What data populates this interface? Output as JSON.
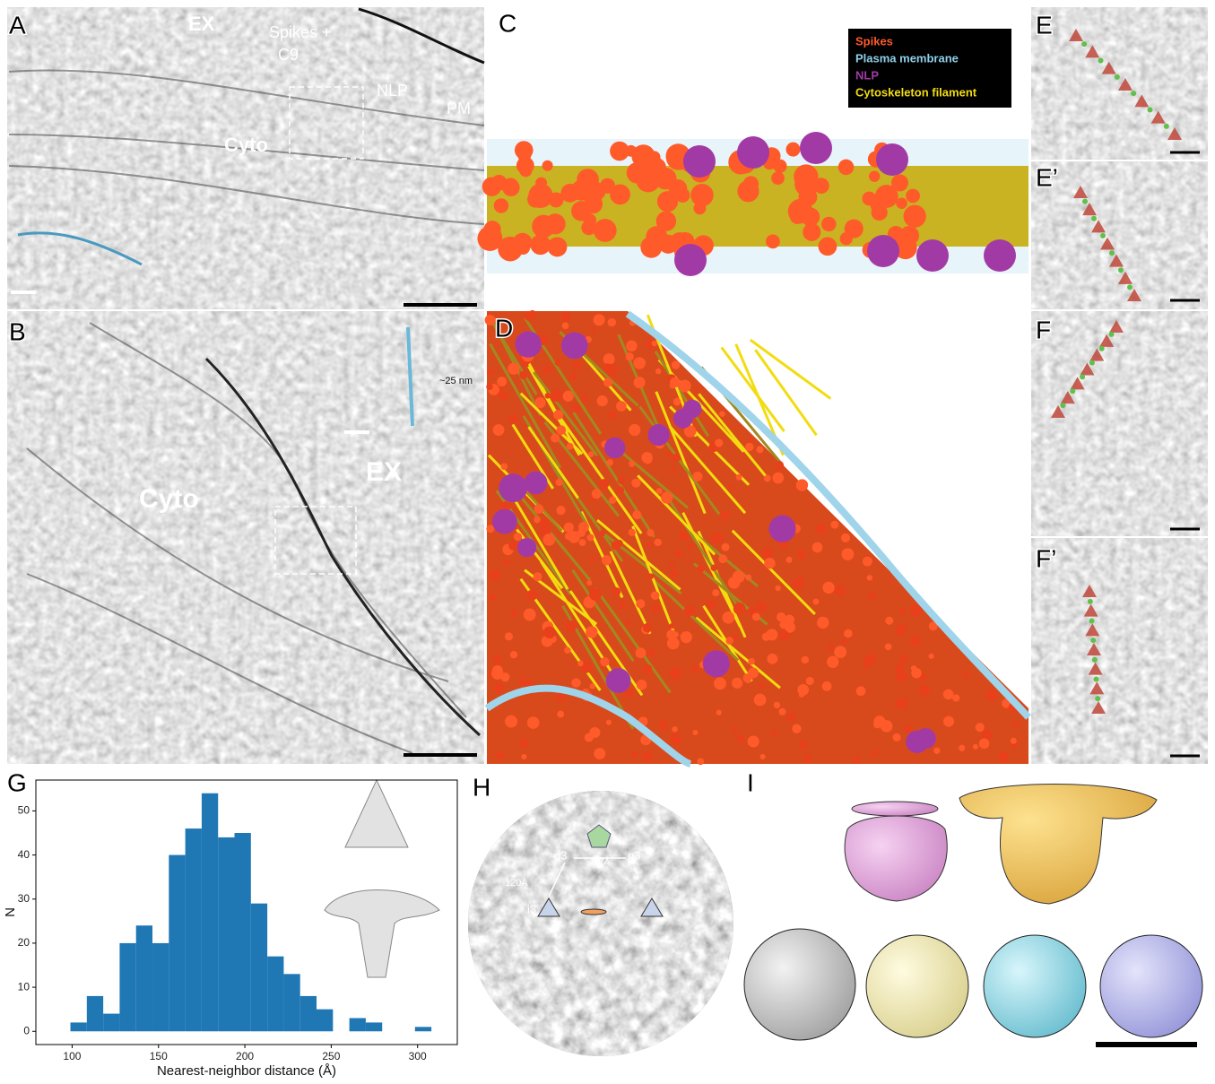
{
  "panels": {
    "a": {
      "label": "A",
      "ex": "EX",
      "spikes_line1": "Spikes +",
      "spikes_line2": "C9",
      "nlp": "NLP",
      "pm": "PM",
      "cyto": "Cyto"
    },
    "b": {
      "label": "B",
      "cyto": "Cyto",
      "ex": "EX",
      "inset_distance": "~25 nm"
    },
    "c": {
      "label": "C",
      "legend": [
        {
          "name": "Spikes",
          "color": "#ff5a2a"
        },
        {
          "name": "Plasma membrane",
          "color": "#8fd0ea"
        },
        {
          "name": "NLP",
          "color": "#a23aa6"
        },
        {
          "name": "Cytoskeleton filament",
          "color": "#f2dc10"
        }
      ]
    },
    "d": {
      "label": "D"
    },
    "e": {
      "label": "E"
    },
    "e_prime": {
      "label": "E’"
    },
    "f": {
      "label": "F"
    },
    "f_prime": {
      "label": "F’"
    },
    "g": {
      "label": "G"
    },
    "h": {
      "label": "H",
      "q3_left": "q3",
      "q3_right": "q3",
      "distance_q3": "117Å",
      "distance_i3": "120Å",
      "i3": "i3"
    },
    "i": {
      "label": "I"
    }
  },
  "chart_data": {
    "type": "histogram",
    "xlabel": "Nearest-neighbor distance (Å)",
    "ylabel": "N",
    "bins": [
      99,
      108.5,
      118,
      127.5,
      137,
      146.5,
      156,
      165.5,
      175,
      184.5,
      194,
      203.5,
      213,
      222.5,
      232,
      241.5,
      251,
      260.5,
      270,
      279.5,
      289,
      298.5,
      308
    ],
    "values": [
      2,
      8,
      4,
      20,
      24,
      20,
      40,
      46,
      54,
      44,
      45,
      29,
      17,
      13,
      8,
      5,
      0,
      3,
      2,
      0,
      0,
      1
    ],
    "color": "#1f77b4",
    "xlim": [
      79,
      323
    ],
    "xticks": [
      100,
      150,
      200,
      250,
      300
    ],
    "ylim": [
      -3,
      57
    ],
    "yticks": [
      0,
      10,
      20,
      30,
      40,
      50
    ]
  }
}
